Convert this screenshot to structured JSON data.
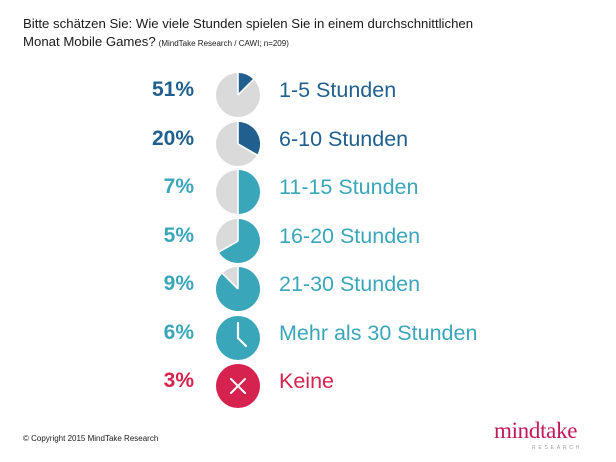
{
  "title": {
    "line1": "Bitte schätzen Sie: Wie viele Stunden spielen Sie in einem durchschnittlichen",
    "line2": "Monat Mobile Games?",
    "note": "(MindTake Research / CAWI; n=209)"
  },
  "chart_data": {
    "type": "table",
    "title": "Bitte schätzen Sie: Wie viele Stunden spielen Sie in einem durchschnittlichen Monat Mobile Games?",
    "categories": [
      "1-5 Stunden",
      "6-10 Stunden",
      "11-15 Stunden",
      "16-20 Stunden",
      "21-30 Stunden",
      "Mehr als 30 Stunden",
      "Keine"
    ],
    "values": [
      51,
      20,
      7,
      5,
      9,
      6,
      3
    ],
    "value_labels": [
      "51%",
      "20%",
      "7%",
      "5%",
      "9%",
      "6%",
      "3%"
    ],
    "clock_fill_fraction": [
      0.125,
      0.333,
      0.5,
      0.667,
      0.875,
      1,
      0
    ],
    "colors": [
      "#21608e",
      "#21608e",
      "#3aa6b9",
      "#3aa6b9",
      "#3aa6b9",
      "#3aa6b9",
      "#d6224f"
    ],
    "icon_types": [
      "clock",
      "clock",
      "clock",
      "clock",
      "clock",
      "clock-full",
      "cross"
    ]
  },
  "footer": {
    "copyright": "© Copyright 2015 MindTake Research"
  },
  "logo": {
    "name": "mindtake",
    "sub": "RESEARCH"
  }
}
